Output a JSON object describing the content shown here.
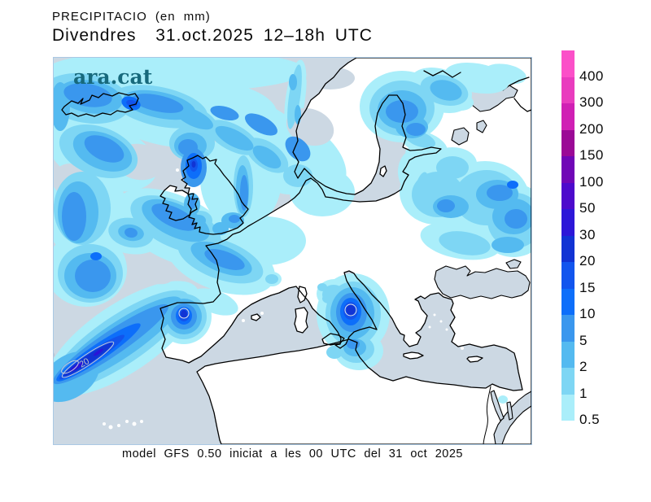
{
  "header": {
    "title": "PRECIPITACIO (en mm)",
    "subtitle": "Divendres  31.oct.2025 12–18h UTC"
  },
  "watermark": {
    "text": "ara.cat",
    "color": "#17697c"
  },
  "footer": {
    "text": "model GFS 0.50 iniciat a les 00 UTC del 31 oct 2025"
  },
  "legend": {
    "unit": "mm",
    "entries": [
      {
        "label": "400",
        "color": "#fb50c8"
      },
      {
        "label": "300",
        "color": "#e93cbe"
      },
      {
        "label": "200",
        "color": "#d020b4"
      },
      {
        "label": "150",
        "color": "#9b0a96"
      },
      {
        "label": "100",
        "color": "#7007b6"
      },
      {
        "label": "50",
        "color": "#4d0acc"
      },
      {
        "label": "30",
        "color": "#2d17d8"
      },
      {
        "label": "20",
        "color": "#1133d4"
      },
      {
        "label": "15",
        "color": "#1255ee"
      },
      {
        "label": "10",
        "color": "#0d6efa"
      },
      {
        "label": "5",
        "color": "#3a97ee"
      },
      {
        "label": "2",
        "color": "#54baf0"
      },
      {
        "label": "1",
        "color": "#7ed6f4"
      },
      {
        "label": "0.5",
        "color": "#aaeefa"
      }
    ]
  },
  "map": {
    "sea_color": "#ccd8e3",
    "land_color": "#ffffff",
    "coast_color": "#000000",
    "contour_labels": [
      {
        "text": "20"
      },
      {
        "text": "20"
      }
    ]
  },
  "chart_data": {
    "type": "heatmap",
    "title": "PRECIPITACIO (en mm)",
    "valid_time": "Divendres 31.oct.2025 12–18h UTC",
    "model_note": "model GFS 0.50 iniciat a les 00 UTC del 31 oct 2025",
    "scale_mm": [
      0.5,
      1,
      2,
      5,
      10,
      15,
      20,
      30,
      50,
      100,
      150,
      200,
      300,
      400
    ],
    "max_shown_contour_mm": 20,
    "regions_with_precipitation": [
      "North Atlantic band southwest of Iberia (core > 20 mm)",
      "Northwest Iberia (core > 20 mm)",
      "Iceland and surrounding Atlantic",
      "Scotland / British Isles and North Sea",
      "English Channel",
      "Southern Italy / Ionian Sea (core > 20 mm)",
      "Gulf of Bothnia and Finland",
      "Eastern Europe / Western Russia",
      "Arctic coast patches"
    ]
  }
}
